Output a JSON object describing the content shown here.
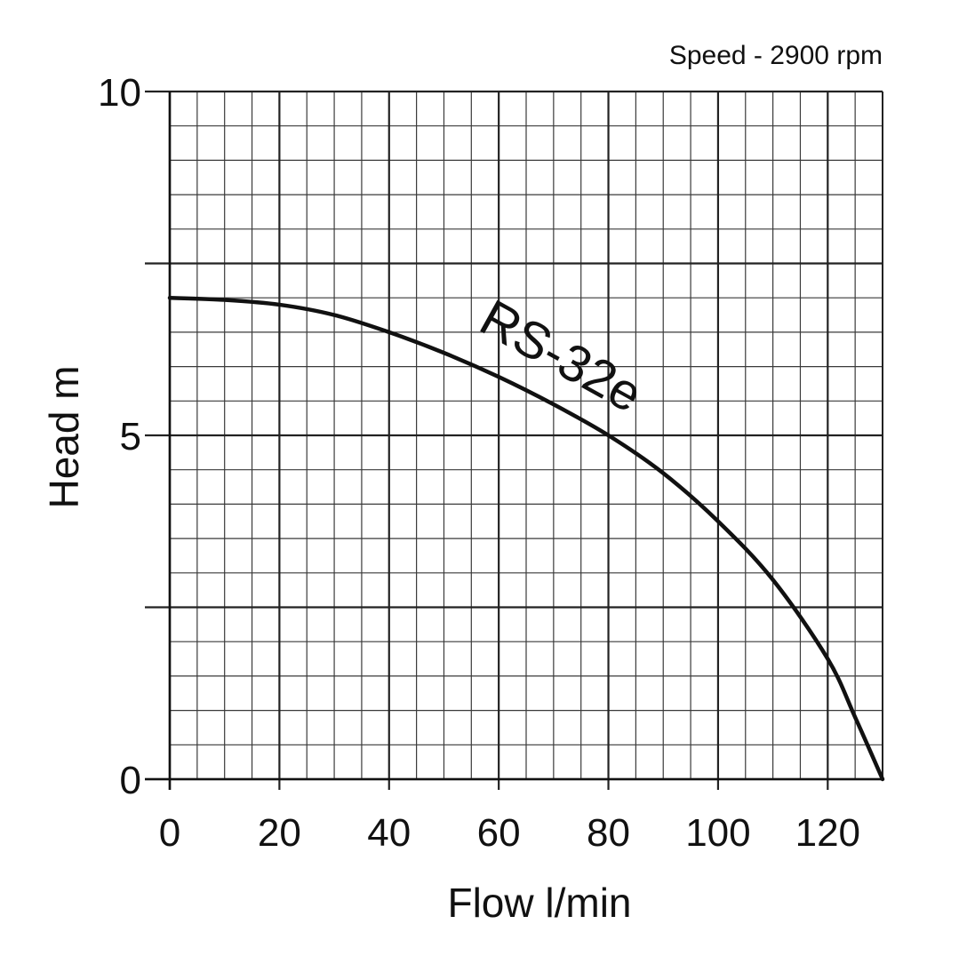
{
  "chart_data": {
    "type": "line",
    "annotation": "Speed - 2900 rpm",
    "xlabel": "Flow l/min",
    "ylabel": "Head m",
    "xlim": [
      0,
      130
    ],
    "ylim": [
      0,
      10
    ],
    "x_ticks": [
      0,
      20,
      40,
      60,
      80,
      100,
      120
    ],
    "y_ticks": [
      0,
      5,
      10
    ],
    "x_minor_step": 5,
    "y_minor_step": 0.5,
    "y_major_gridlines": [
      0,
      2.5,
      5,
      7.5,
      10
    ],
    "grid": true,
    "series": [
      {
        "name": "RS-32e",
        "x": [
          0,
          10,
          20,
          30,
          40,
          50,
          60,
          70,
          80,
          90,
          100,
          110,
          120,
          125,
          130
        ],
        "y": [
          7.0,
          6.97,
          6.9,
          6.75,
          6.5,
          6.2,
          5.85,
          5.45,
          5.0,
          4.45,
          3.75,
          2.9,
          1.75,
          0.9,
          0.0
        ]
      }
    ],
    "colors": {
      "grid": "#3a3a3a",
      "curve": "#111111",
      "background": "#ffffff"
    }
  }
}
